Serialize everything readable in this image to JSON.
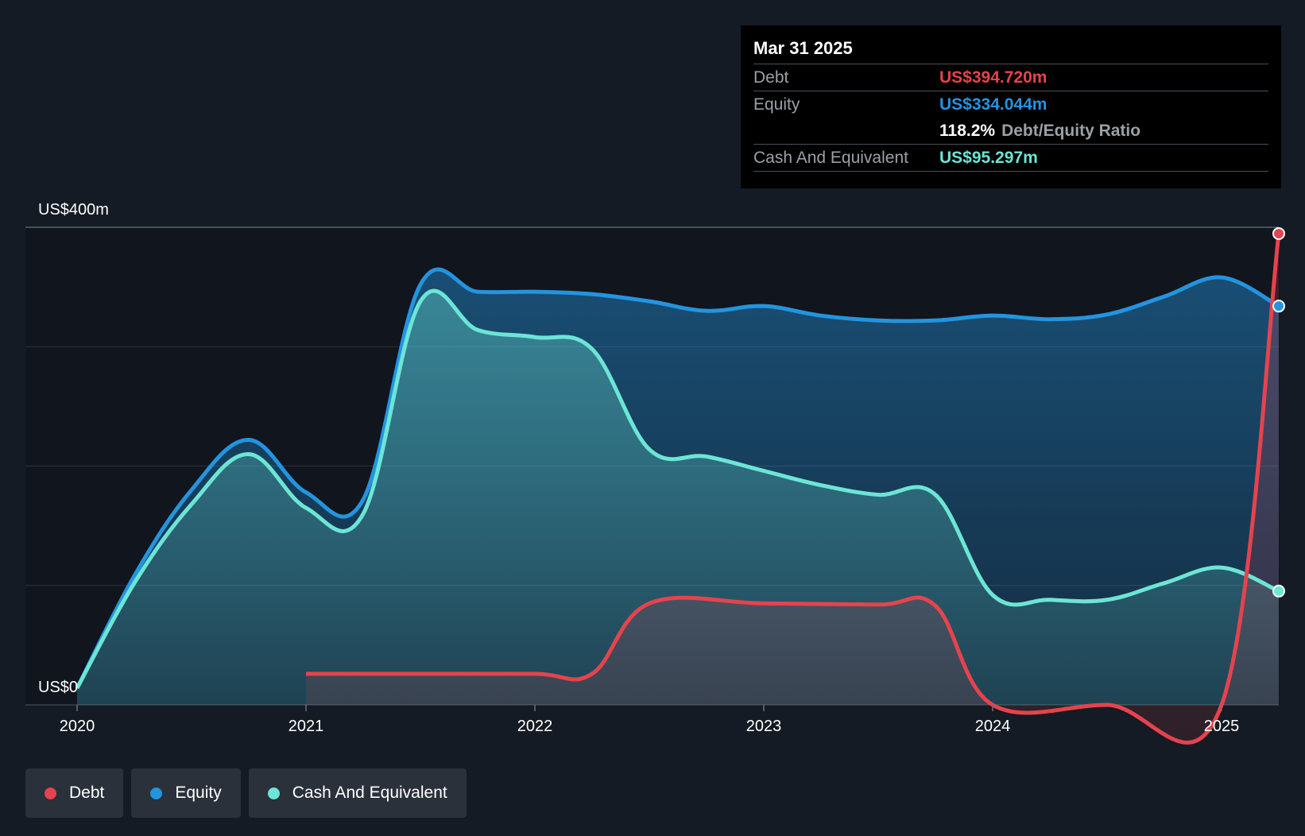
{
  "tooltip": {
    "date": "Mar 31 2025",
    "rows": [
      {
        "label": "Debt",
        "value": "US$394.720m",
        "color": "#e5434d"
      },
      {
        "label": "Equity",
        "value": "US$334.044m",
        "color": "#2394df"
      }
    ],
    "ratio_value": "118.2%",
    "ratio_label": "Debt/Equity Ratio",
    "cash": {
      "label": "Cash And Equivalent",
      "value": "US$95.297m",
      "color": "#6ce5d5"
    }
  },
  "legend": [
    {
      "label": "Debt",
      "color": "#e5434d"
    },
    {
      "label": "Equity",
      "color": "#2394df"
    },
    {
      "label": "Cash And Equivalent",
      "color": "#6ce5d5"
    }
  ],
  "chart_data": {
    "type": "area",
    "y_top_label": "US$400m",
    "y_bottom_label": "US$0",
    "ylim": [
      0,
      400
    ],
    "xlim": [
      2020.0,
      2025.25
    ],
    "x_ticks": [
      "2020",
      "2021",
      "2022",
      "2023",
      "2024",
      "2025"
    ],
    "grid": true,
    "legend_position": "bottom-left",
    "series": [
      {
        "name": "Equity",
        "color": "#2394df",
        "x": [
          2020.0,
          2020.25,
          2020.5,
          2020.75,
          2021.0,
          2021.25,
          2021.5,
          2021.75,
          2022.0,
          2022.25,
          2022.5,
          2022.75,
          2023.0,
          2023.25,
          2023.5,
          2023.75,
          2024.0,
          2024.25,
          2024.5,
          2024.75,
          2025.0,
          2025.25
        ],
        "y": [
          14,
          108,
          180,
          222,
          178,
          172,
          352,
          346,
          346,
          344,
          338,
          330,
          334,
          326,
          322,
          322,
          326,
          323,
          327,
          342,
          358,
          334
        ]
      },
      {
        "name": "Cash And Equivalent",
        "color": "#6ce5d5",
        "x": [
          2020.0,
          2020.25,
          2020.5,
          2020.75,
          2021.0,
          2021.25,
          2021.5,
          2021.75,
          2022.0,
          2022.25,
          2022.5,
          2022.75,
          2023.0,
          2023.25,
          2023.5,
          2023.75,
          2024.0,
          2024.25,
          2024.5,
          2024.75,
          2025.0,
          2025.25
        ],
        "y": [
          14,
          102,
          168,
          210,
          165,
          160,
          338,
          314,
          308,
          298,
          214,
          208,
          196,
          184,
          176,
          176,
          92,
          88,
          88,
          102,
          115,
          95.3
        ]
      },
      {
        "name": "Debt",
        "color": "#e5434d",
        "x": [
          2021.0,
          2021.5,
          2022.0,
          2022.25,
          2022.5,
          2023.0,
          2023.5,
          2023.75,
          2024.0,
          2024.5,
          2025.0,
          2025.25
        ],
        "y": [
          26,
          26,
          26,
          26,
          85,
          85,
          84,
          83,
          0,
          0,
          0,
          394.7
        ]
      }
    ]
  }
}
